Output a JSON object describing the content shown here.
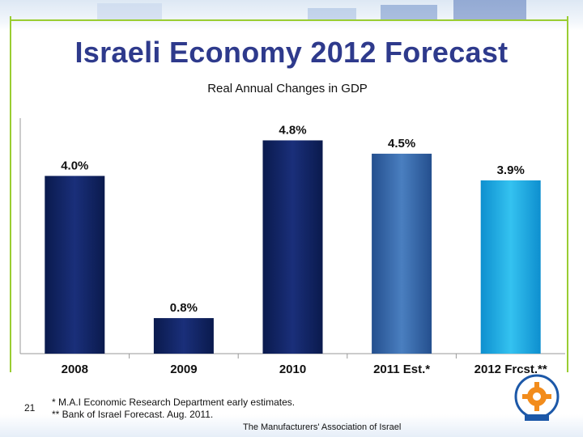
{
  "slide": {
    "title": "Israeli Economy 2012 Forecast",
    "number": "21",
    "organization": "The Manufacturers' Association of Israel",
    "footnotes": [
      "* M.A.I Economic Research Department early estimates.",
      "** Bank of Israel Forecast. Aug. 2011."
    ]
  },
  "colors": {
    "title": "#2e3a8c",
    "accent_green": "#9acd32",
    "bar_dark": "#0d1f5c",
    "bar_mid": "#2f5e9e",
    "bar_light": "#1aa7e0"
  },
  "chart_data": {
    "type": "bar",
    "title": "Real Annual Changes in GDP",
    "categories": [
      "2008",
      "2009",
      "2010",
      "2011 Est.*",
      "2012 Frcst.**"
    ],
    "values": [
      4.0,
      0.8,
      4.8,
      4.5,
      3.9
    ],
    "value_labels": [
      "4.0%",
      "0.8%",
      "4.8%",
      "4.5%",
      "3.9%"
    ],
    "bar_colors": [
      "#0d1f5c",
      "#0d1f5c",
      "#0d1f5c",
      "#2f5e9e",
      "#1aa7e0"
    ],
    "xlabel": "",
    "ylabel": "",
    "ylim": [
      0,
      5.3
    ],
    "grid": false,
    "legend": "none"
  }
}
